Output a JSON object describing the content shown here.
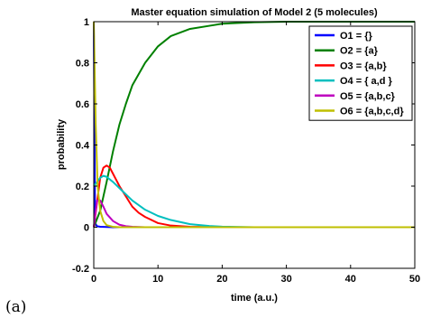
{
  "figure": {
    "panel_label": "(a)"
  },
  "chart_data": {
    "type": "line",
    "title": "Master equation simulation of Model 2 (5 molecules)",
    "xlabel": "time (a.u.)",
    "ylabel": "probability",
    "xlim": [
      0,
      50
    ],
    "ylim": [
      -0.2,
      1
    ],
    "xticks": [
      0,
      10,
      20,
      30,
      40,
      50
    ],
    "yticks": [
      -0.2,
      0,
      0.2,
      0.4,
      0.6,
      0.8,
      1
    ],
    "grid": false,
    "legend_position": "top-right",
    "series": [
      {
        "name": "O1 = {}",
        "color": "#0000ff",
        "x": [
          0,
          0.2,
          0.5,
          1,
          2,
          3,
          50
        ],
        "y": [
          1,
          0.02,
          0.005,
          0.002,
          0.001,
          0,
          0
        ]
      },
      {
        "name": "O2 = {a}",
        "color": "#008000",
        "x": [
          0,
          1,
          2,
          3,
          4,
          5,
          6,
          8,
          10,
          12,
          15,
          18,
          20,
          25,
          30,
          40,
          50
        ],
        "y": [
          0,
          0.08,
          0.22,
          0.37,
          0.5,
          0.6,
          0.69,
          0.8,
          0.88,
          0.93,
          0.965,
          0.98,
          0.99,
          0.997,
          1,
          1,
          1
        ]
      },
      {
        "name": "O3 = {a,b}",
        "color": "#ff0000",
        "x": [
          0,
          0.5,
          1,
          1.5,
          2,
          2.5,
          3,
          4,
          5,
          6,
          7,
          8,
          10,
          12,
          15,
          20,
          50
        ],
        "y": [
          0,
          0.12,
          0.24,
          0.29,
          0.3,
          0.29,
          0.26,
          0.2,
          0.15,
          0.1,
          0.07,
          0.05,
          0.02,
          0.008,
          0.002,
          0,
          0
        ]
      },
      {
        "name": "O4 = { a,d }",
        "color": "#00bfbf",
        "x": [
          0,
          0.5,
          1,
          1.5,
          2,
          3,
          4,
          5,
          6,
          8,
          10,
          12,
          15,
          18,
          20,
          25,
          50
        ],
        "y": [
          0.2,
          0.22,
          0.24,
          0.25,
          0.245,
          0.22,
          0.19,
          0.16,
          0.13,
          0.085,
          0.055,
          0.035,
          0.015,
          0.006,
          0.003,
          0,
          0
        ]
      },
      {
        "name": "O5 = {a,b,c}",
        "color": "#bf00bf",
        "x": [
          0,
          0.5,
          1,
          1.5,
          2,
          3,
          4,
          5,
          6,
          8,
          50
        ],
        "y": [
          0,
          0.13,
          0.13,
          0.1,
          0.065,
          0.03,
          0.012,
          0.005,
          0.002,
          0,
          0
        ]
      },
      {
        "name": "O6 = {a,b,c,d}",
        "color": "#bfbf00",
        "x": [
          0,
          0.3,
          0.6,
          1,
          1.5,
          2,
          3,
          4,
          5,
          50
        ],
        "y": [
          1,
          0.5,
          0.2,
          0.08,
          0.03,
          0.01,
          0.002,
          0,
          0,
          0
        ]
      }
    ]
  }
}
